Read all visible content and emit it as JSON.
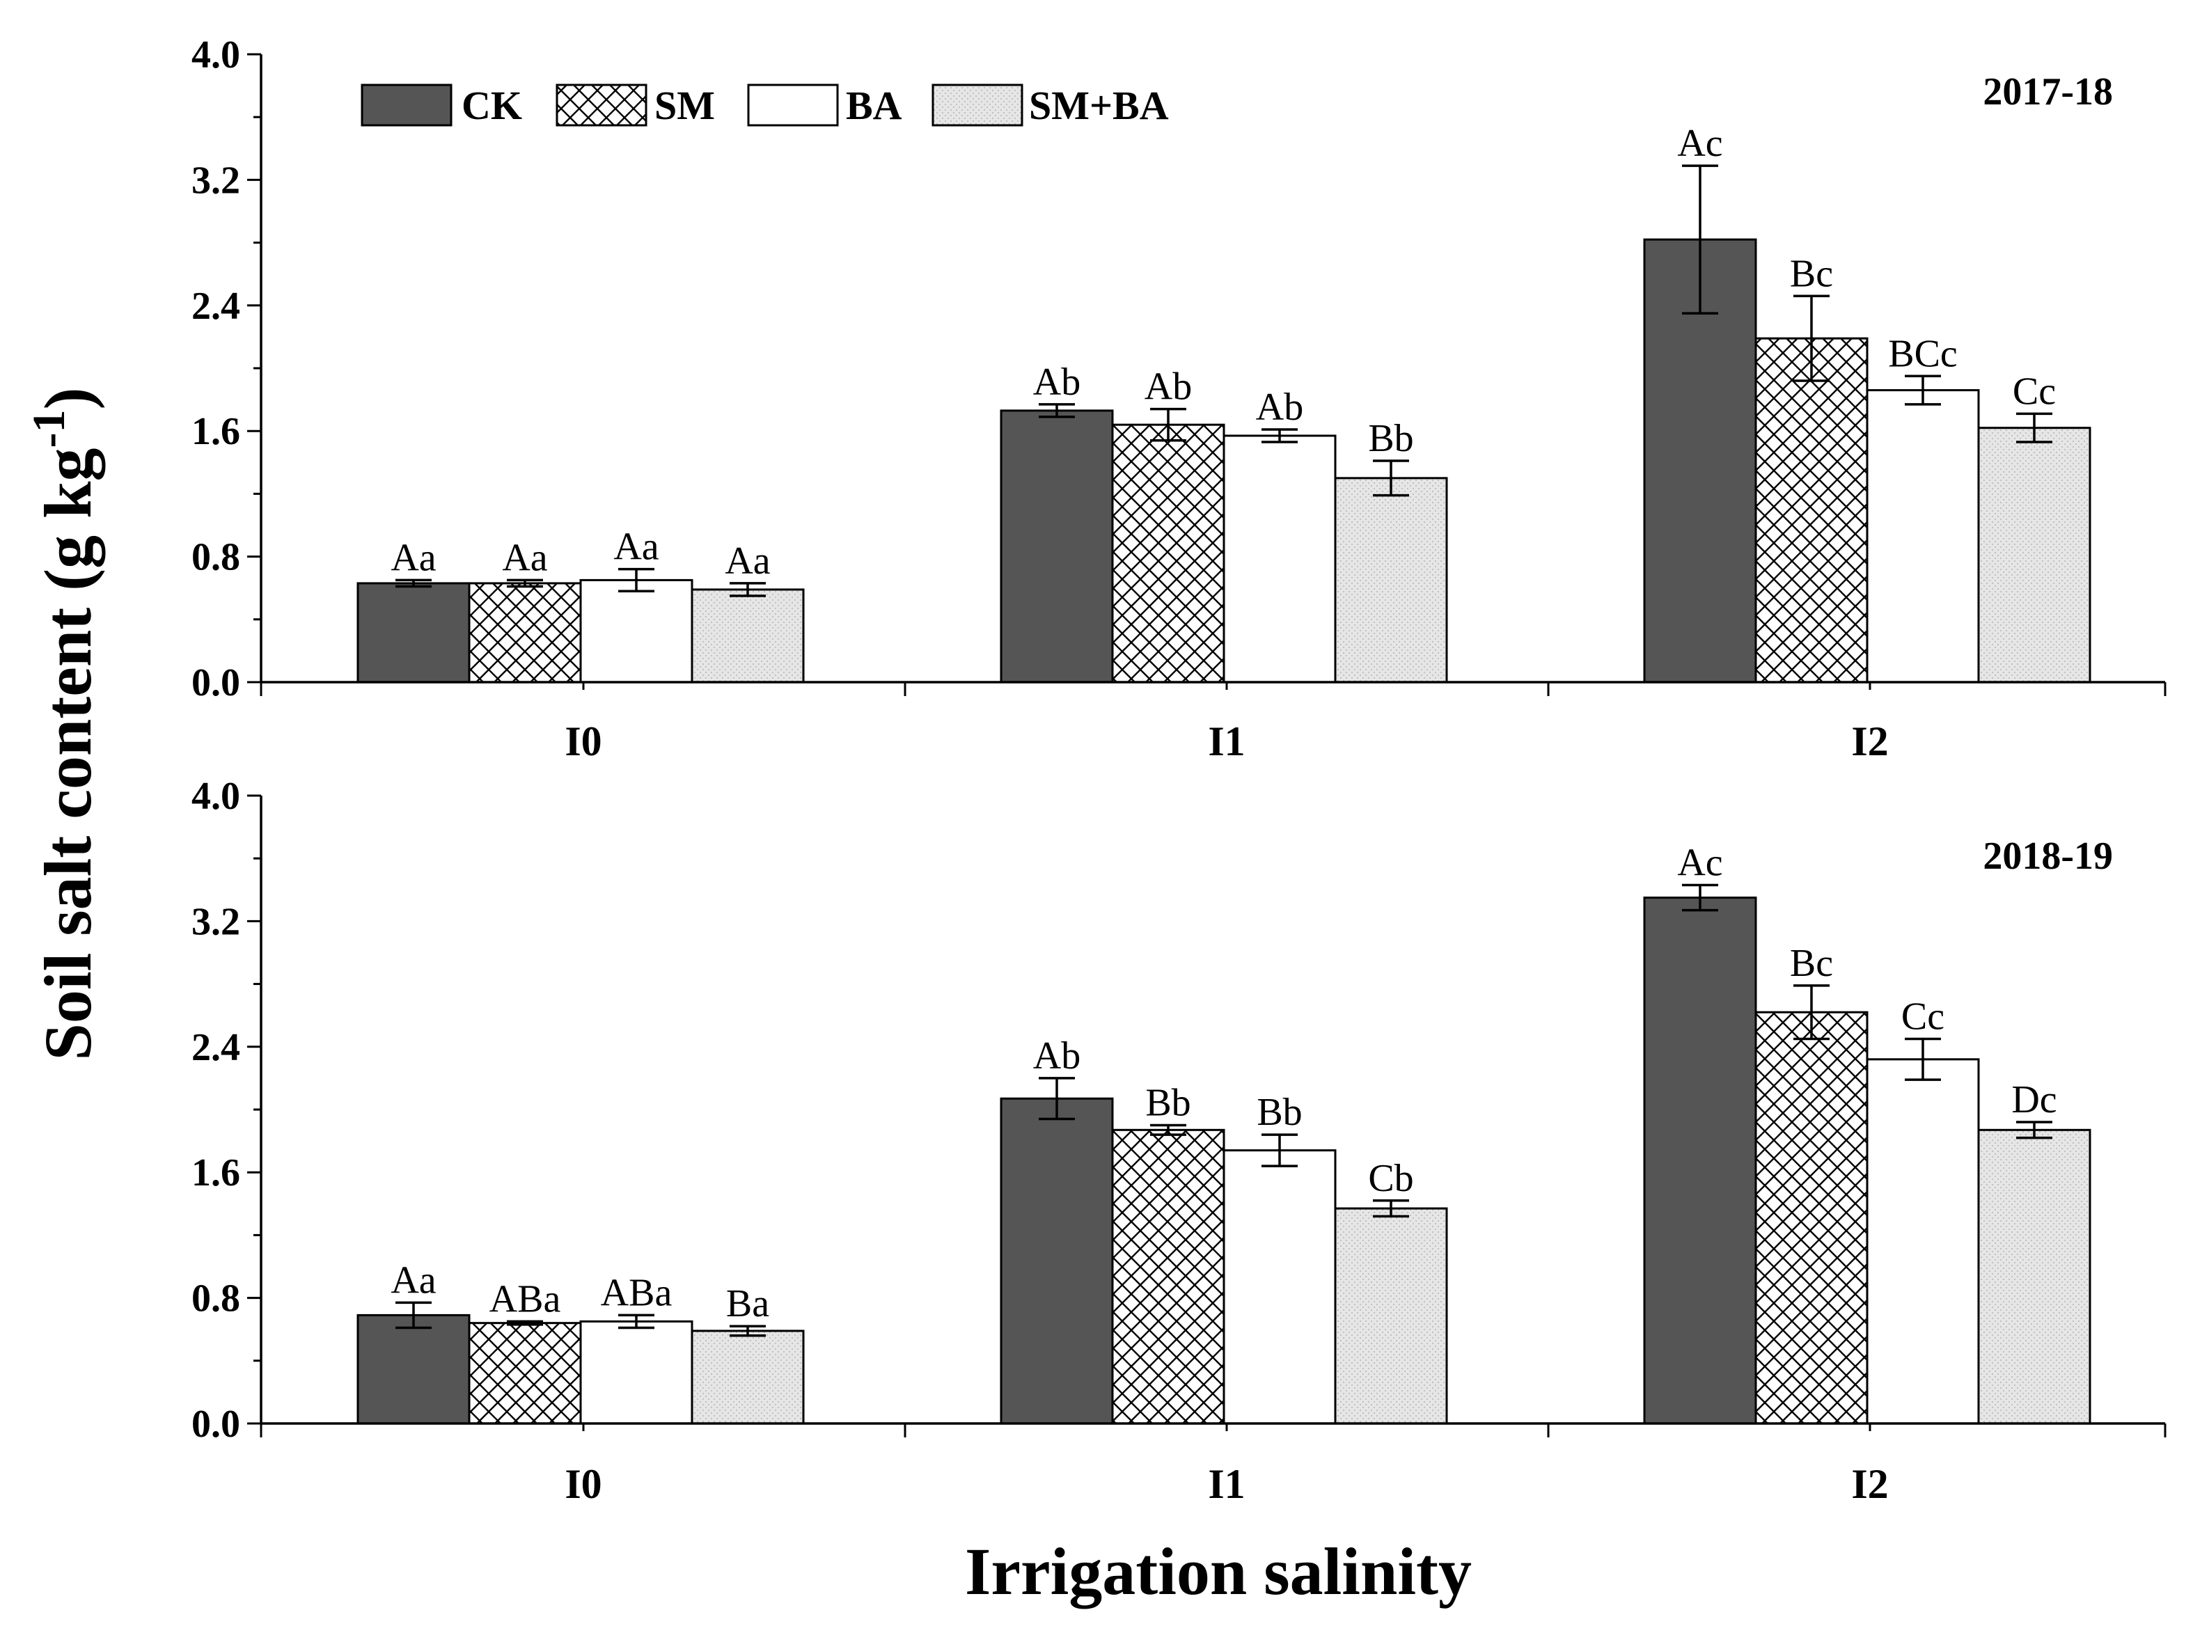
{
  "figure": {
    "xlabel": "Irrigation salinity",
    "ylabel_main": "Soil salt content (g kg",
    "ylabel_sup": "-1",
    "ylabel_close": ")"
  },
  "legend": [
    {
      "name": "CK",
      "color": "#555555",
      "pattern": "solid"
    },
    {
      "name": "SM",
      "color": "#ffffff",
      "pattern": "crosshatch"
    },
    {
      "name": "BA",
      "color": "#ffffff",
      "pattern": "none"
    },
    {
      "name": "SM+BA",
      "color": "#e3e3e3",
      "pattern": "dots"
    }
  ],
  "chart_data": [
    {
      "type": "bar",
      "title": "2017-18",
      "categories": [
        "I0",
        "I1",
        "I2"
      ],
      "ylim": [
        0,
        4.0
      ],
      "yticks": [
        "0.0",
        "0.8",
        "1.6",
        "2.4",
        "3.2",
        "4.0"
      ],
      "series": [
        {
          "name": "CK",
          "values": [
            0.63,
            1.73,
            2.82
          ],
          "errors": [
            0.02,
            0.04,
            0.47
          ],
          "labels": [
            "Aa",
            "Ab",
            "Ac"
          ]
        },
        {
          "name": "SM",
          "values": [
            0.63,
            1.64,
            2.19
          ],
          "errors": [
            0.02,
            0.1,
            0.27
          ],
          "labels": [
            "Aa",
            "Ab",
            "Bc"
          ]
        },
        {
          "name": "BA",
          "values": [
            0.65,
            1.57,
            1.86
          ],
          "errors": [
            0.07,
            0.04,
            0.09
          ],
          "labels": [
            "Aa",
            "Ab",
            "BCc"
          ]
        },
        {
          "name": "SM+BA",
          "values": [
            0.59,
            1.3,
            1.62
          ],
          "errors": [
            0.04,
            0.11,
            0.09
          ],
          "labels": [
            "Aa",
            "Bb",
            "Cc"
          ]
        }
      ]
    },
    {
      "type": "bar",
      "title": "2018-19",
      "categories": [
        "I0",
        "I1",
        "I2"
      ],
      "ylim": [
        0,
        4.0
      ],
      "yticks": [
        "0.0",
        "0.8",
        "1.6",
        "2.4",
        "3.2",
        "4.0"
      ],
      "series": [
        {
          "name": "CK",
          "values": [
            0.69,
            2.07,
            3.35
          ],
          "errors": [
            0.08,
            0.13,
            0.08
          ],
          "labels": [
            "Aa",
            "Ab",
            "Ac"
          ]
        },
        {
          "name": "SM",
          "values": [
            0.64,
            1.87,
            2.62
          ],
          "errors": [
            0.01,
            0.03,
            0.17
          ],
          "labels": [
            "ABa",
            "Bb",
            "Bc"
          ]
        },
        {
          "name": "BA",
          "values": [
            0.65,
            1.74,
            2.32
          ],
          "errors": [
            0.04,
            0.1,
            0.13
          ],
          "labels": [
            "ABa",
            "Bb",
            "Cc"
          ]
        },
        {
          "name": "SM+BA",
          "values": [
            0.59,
            1.37,
            1.87
          ],
          "errors": [
            0.03,
            0.05,
            0.05
          ],
          "labels": [
            "Ba",
            "Cb",
            "Dc"
          ]
        }
      ]
    }
  ]
}
